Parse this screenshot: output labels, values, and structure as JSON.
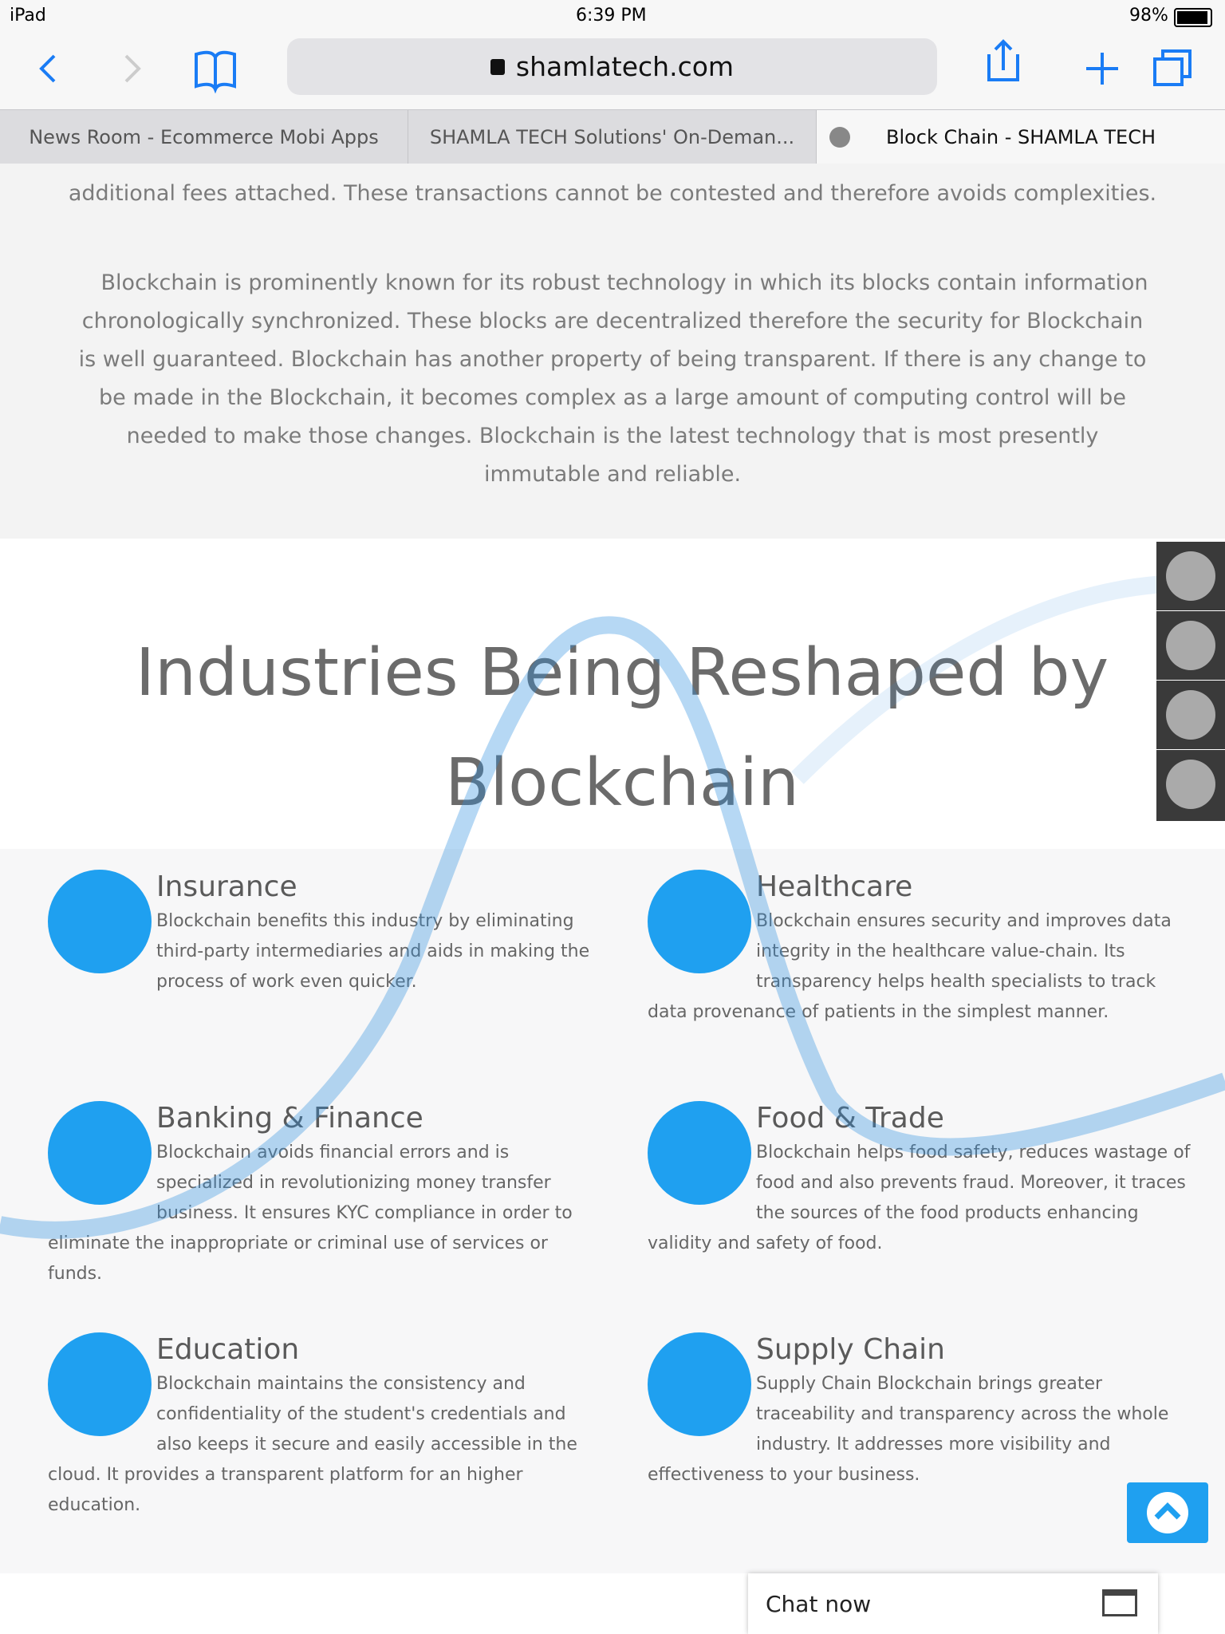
{
  "status_bar": {
    "device": "iPad",
    "time": "6:39 PM",
    "battery": "98%"
  },
  "browser": {
    "url": "shamlatech.com",
    "tabs": [
      "News Room - Ecommerce Mobi Apps",
      "SHAMLA TECH Solutions' On-Deman...",
      "Block Chain - SHAMLA TECH"
    ]
  },
  "intro": {
    "paragraphs": [
      "additional fees attached. These transactions cannot be contested and therefore avoids complexities.",
      "Blockchain is prominently known for its robust technology in which its blocks contain information chronologically synchronized. These blocks are decentralized therefore the security for Blockchain is well guaranteed. Blockchain has another property of being transparent. If there is any change to be made in the Blockchain, it becomes complex as a large amount of computing control will be needed to make those changes. Blockchain is the latest technology that is most presently immutable and reliable."
    ]
  },
  "section": {
    "title": "Industries Being Reshaped by Blockchain",
    "items": [
      {
        "title": "Insurance",
        "text": "Blockchain benefits this industry by eliminating third-party intermediaries and aids in making the process of work even quicker."
      },
      {
        "title": "Healthcare",
        "text": "Blockchain ensures security and improves data integrity in the healthcare value-chain. Its transparency helps health specialists to track data provenance of patients in the simplest manner."
      },
      {
        "title": "Banking & Finance",
        "text": "Blockchain avoids financial errors and is specialized in revolutionizing money transfer business. It ensures KYC compliance in order to eliminate the inappropriate or criminal use of services or funds."
      },
      {
        "title": "Food & Trade",
        "text": "Blockchain helps food safety, reduces wastage of food and also prevents fraud. Moreover, it traces the sources of the food products enhancing validity and safety of food."
      },
      {
        "title": "Education",
        "text": "Blockchain maintains the consistency and confidentiality of the student's credentials and also keeps it secure and easily accessible in the cloud. It provides a transparent platform for an higher education."
      },
      {
        "title": "Supply Chain",
        "text": "Supply Chain Blockchain brings greater traceability and transparency across the whole industry. It addresses more visibility and effectiveness to your business."
      }
    ]
  },
  "chat": {
    "label": "Chat now"
  }
}
